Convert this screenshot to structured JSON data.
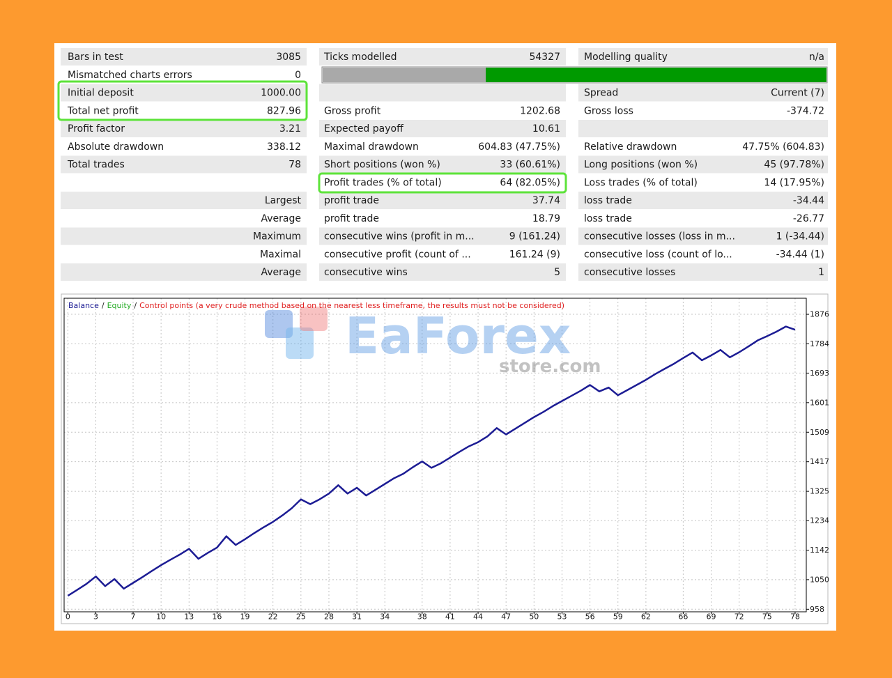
{
  "table": {
    "rows": [
      [
        "Bars in test",
        "3085",
        "Ticks modelled",
        "54327",
        "Modelling quality",
        "n/a"
      ],
      [
        "Mismatched charts errors",
        "0",
        null,
        null,
        null,
        null
      ],
      [
        "Initial deposit",
        "1000.00",
        null,
        null,
        "Spread",
        "Current (7)"
      ],
      [
        "Total net profit",
        "827.96",
        "Gross profit",
        "1202.68",
        "Gross loss",
        "-374.72"
      ],
      [
        "Profit factor",
        "3.21",
        "Expected payoff",
        "10.61",
        null,
        null
      ],
      [
        "Absolute drawdown",
        "338.12",
        "Maximal drawdown",
        "604.83 (47.75%)",
        "Relative drawdown",
        "47.75% (604.83)"
      ],
      [
        "Total trades",
        "78",
        "Short positions (won %)",
        "33 (60.61%)",
        "Long positions (won %)",
        "45 (97.78%)"
      ],
      [
        null,
        null,
        "Profit trades (% of total)",
        "64 (82.05%)",
        "Loss trades (% of total)",
        "14 (17.95%)"
      ],
      [
        null,
        "Largest",
        "profit trade",
        "37.74",
        "loss trade",
        "-34.44"
      ],
      [
        null,
        "Average",
        "profit trade",
        "18.79",
        "loss trade",
        "-26.77"
      ],
      [
        null,
        "Maximum",
        "consecutive wins (profit in m...",
        "9 (161.24)",
        "consecutive losses (loss in m...",
        "1 (-34.44)"
      ],
      [
        null,
        "Maximal",
        "consecutive profit (count of ...",
        "161.24 (9)",
        "consecutive loss (count of lo...",
        "-34.44 (1)"
      ],
      [
        null,
        "Average",
        "consecutive wins",
        "5",
        "consecutive losses",
        "1"
      ]
    ]
  },
  "watermark": {
    "brand": "EaForex",
    "domain": "store.com"
  },
  "chart_data": {
    "type": "line",
    "legend_separator": "/",
    "legend_extra": [
      {
        "text": "Equity",
        "color": "#22aa22"
      },
      {
        "text": "Control points (a very crude method based on the nearest less timeframe, the results must not be considered)",
        "color": "#e02020"
      }
    ],
    "x": [
      0,
      1,
      2,
      3,
      4,
      5,
      6,
      7,
      8,
      9,
      10,
      11,
      12,
      13,
      14,
      15,
      16,
      17,
      18,
      19,
      20,
      21,
      22,
      23,
      24,
      25,
      26,
      27,
      28,
      29,
      30,
      31,
      32,
      33,
      34,
      35,
      36,
      37,
      38,
      39,
      40,
      41,
      42,
      43,
      44,
      45,
      46,
      47,
      48,
      49,
      50,
      51,
      52,
      53,
      54,
      55,
      56,
      57,
      58,
      59,
      60,
      61,
      62,
      63,
      64,
      65,
      66,
      67,
      68,
      69,
      70,
      71,
      72,
      73,
      74,
      75,
      76,
      77,
      78
    ],
    "series": [
      {
        "name": "Balance",
        "color": "#1c1c94",
        "values": [
          1000,
          1018,
          1037,
          1060,
          1030,
          1052,
          1022,
          1040,
          1058,
          1077,
          1095,
          1112,
          1128,
          1146,
          1115,
          1133,
          1150,
          1185,
          1158,
          1176,
          1195,
          1213,
          1230,
          1250,
          1272,
          1300,
          1285,
          1300,
          1318,
          1344,
          1318,
          1336,
          1312,
          1330,
          1348,
          1366,
          1380,
          1400,
          1418,
          1398,
          1412,
          1430,
          1448,
          1465,
          1478,
          1496,
          1522,
          1502,
          1520,
          1538,
          1556,
          1572,
          1590,
          1606,
          1622,
          1638,
          1656,
          1636,
          1648,
          1624,
          1640,
          1656,
          1672,
          1690,
          1706,
          1722,
          1740,
          1757,
          1733,
          1748,
          1765,
          1742,
          1758,
          1776,
          1795,
          1808,
          1822,
          1838,
          1828
        ]
      }
    ],
    "xlim": [
      -0.4,
      79.2
    ],
    "xticks": [
      0,
      3,
      7,
      10,
      13,
      16,
      19,
      22,
      25,
      28,
      31,
      34,
      38,
      41,
      44,
      47,
      50,
      53,
      56,
      59,
      62,
      66,
      69,
      72,
      75,
      78
    ],
    "ylim": [
      950,
      1926
    ],
    "yticks": [
      958,
      1050,
      1142,
      1234,
      1325,
      1417,
      1509,
      1601,
      1693,
      1784,
      1876
    ],
    "grid": true
  }
}
